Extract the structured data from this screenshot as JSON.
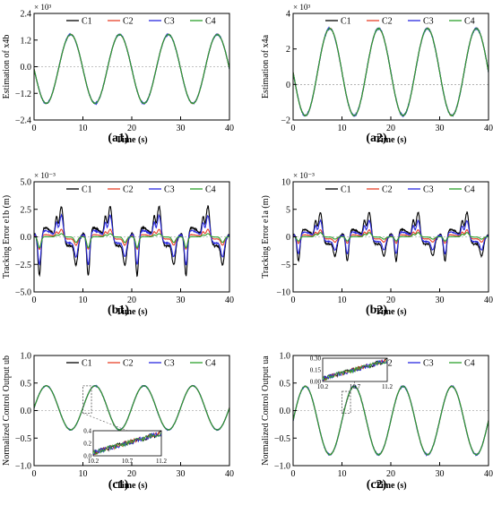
{
  "series_colors": {
    "C1": "#000000",
    "C2": "#e8412a",
    "C3": "#2a2ae0",
    "C4": "#2ca02c"
  },
  "panel_order": [
    "a1",
    "a2",
    "b1",
    "b2",
    "c1",
    "c2"
  ],
  "chart_data": [
    {
      "id": "a1",
      "type": "line",
      "caption": "(a1)",
      "ylabel": "Estimation of x4b",
      "xlabel": "Time (s)",
      "exponent": "× 10³",
      "xlim": [
        0,
        40
      ],
      "ylim": [
        -2.4,
        2.4
      ],
      "xticks": [
        0,
        10,
        20,
        30,
        40
      ],
      "yticks": [
        -2.4,
        -1.2,
        0.0,
        1.2,
        2.4
      ],
      "ytick_labels": [
        "−2.4",
        "−1.2",
        "0.0",
        "1.2",
        "2.4"
      ],
      "legend": [
        "C1",
        "C2",
        "C3",
        "C4"
      ],
      "legend_position": "top-right",
      "signal": {
        "kind": "sine",
        "amplitude": 1.55,
        "offset": -0.1,
        "period": 10,
        "phase_peak_time": 7.5
      },
      "samples": {
        "x": [
          0,
          2.5,
          5,
          7.5,
          10,
          12.5,
          15,
          17.5,
          20,
          22.5,
          25,
          27.5,
          30,
          32.5,
          35,
          37.5,
          40
        ],
        "y": [
          -0.1,
          -1.65,
          -0.1,
          1.45,
          -0.1,
          -1.65,
          -0.1,
          1.45,
          -0.1,
          -1.65,
          -0.1,
          1.45,
          -0.1,
          -1.65,
          -0.1,
          1.45,
          -0.1
        ]
      }
    },
    {
      "id": "a2",
      "type": "line",
      "caption": "(a2)",
      "ylabel": "Estimation of x4a",
      "xlabel": "Time (s)",
      "exponent": "× 10³",
      "xlim": [
        0,
        40
      ],
      "ylim": [
        -2,
        4
      ],
      "xticks": [
        0,
        10,
        20,
        30,
        40
      ],
      "yticks": [
        -2,
        0,
        2,
        4
      ],
      "ytick_labels": [
        "−2",
        "0",
        "2",
        "4"
      ],
      "legend": [
        "C1",
        "C2",
        "C3",
        "C4"
      ],
      "legend_position": "top-right",
      "signal": {
        "kind": "sine",
        "amplitude": 2.45,
        "offset": 0.7,
        "period": 10,
        "phase_peak_time": 7.5
      },
      "samples": {
        "x": [
          0,
          2.5,
          5,
          7.5,
          10,
          12.5,
          15,
          17.5,
          20,
          22.5,
          25,
          27.5,
          30,
          32.5,
          35,
          37.5,
          40
        ],
        "y": [
          0.7,
          -1.75,
          0.7,
          3.15,
          0.7,
          -1.75,
          0.7,
          3.15,
          0.7,
          -1.75,
          0.7,
          3.15,
          0.7,
          -1.75,
          0.7,
          3.15,
          0.7
        ]
      }
    },
    {
      "id": "b1",
      "type": "line",
      "caption": "(b1)",
      "ylabel": "Tracking Error e1b (m)",
      "xlabel": "Time (s)",
      "exponent": "× 10⁻³",
      "xlim": [
        0,
        40
      ],
      "ylim": [
        -5.0,
        5.0
      ],
      "xticks": [
        0,
        10,
        20,
        30,
        40
      ],
      "yticks": [
        -5.0,
        -2.5,
        0.0,
        2.5,
        5.0
      ],
      "ytick_labels": [
        "−5.0",
        "−2.5",
        "0.0",
        "2.5",
        "5.0"
      ],
      "legend": [
        "C1",
        "C2",
        "C3",
        "C4"
      ],
      "legend_position": "top-right",
      "error_peaks": {
        "C1": [
          3.3,
          -4.2
        ],
        "C2": [
          0.8,
          -1.3
        ],
        "C3": [
          2.3,
          -3.0
        ],
        "C4": [
          0.3,
          -1.0
        ]
      }
    },
    {
      "id": "b2",
      "type": "line",
      "caption": "(b2)",
      "ylabel": "Tracking Error e1a (m)",
      "xlabel": "Time (s)",
      "exponent": "× 10⁻³",
      "xlim": [
        0,
        40
      ],
      "ylim": [
        -10,
        10
      ],
      "xticks": [
        0,
        10,
        20,
        30,
        40
      ],
      "yticks": [
        -10,
        -5,
        0,
        5,
        10
      ],
      "ytick_labels": [
        "−10",
        "−5",
        "0",
        "5",
        "10"
      ],
      "legend": [
        "C1",
        "C2",
        "C3",
        "C4"
      ],
      "legend_position": "top-right",
      "error_peaks": {
        "C1": [
          5.3,
          -5.5
        ],
        "C2": [
          1.5,
          -1.5
        ],
        "C3": [
          3.5,
          -3.8
        ],
        "C4": [
          0.8,
          -0.8
        ]
      }
    },
    {
      "id": "c1",
      "type": "line",
      "caption": "(c1)",
      "ylabel": "Normalized Control Output ub",
      "xlabel": "Time (s)",
      "exponent": "",
      "xlim": [
        0,
        40
      ],
      "ylim": [
        -1.0,
        1.0
      ],
      "xticks": [
        0,
        10,
        20,
        30,
        40
      ],
      "yticks": [
        -1.0,
        -0.5,
        0.0,
        0.5,
        1.0
      ],
      "ytick_labels": [
        "−1.0",
        "−0.5",
        "0.0",
        "0.5",
        "1.0"
      ],
      "legend": [
        "C1",
        "C2",
        "C3",
        "C4"
      ],
      "legend_position": "top-right",
      "signal": {
        "kind": "sine",
        "amplitude": 0.4,
        "offset": 0.05,
        "period": 10,
        "phase_peak_time": 2.5
      },
      "inset": {
        "xlim": [
          10.2,
          11.2
        ],
        "ylim": [
          0.0,
          0.4
        ],
        "xticks": [
          10.2,
          10.7,
          11.2
        ],
        "yticks": [
          0.0,
          0.2,
          0.4
        ],
        "xtick_labels": [
          "10.2",
          "10.7",
          "11.2"
        ],
        "ytick_labels": [
          "0.0",
          "0.2",
          "0.4"
        ],
        "zoom_box": [
          10.2,
          11.2,
          0.0,
          0.4
        ]
      }
    },
    {
      "id": "c2",
      "type": "line",
      "caption": "(c2)",
      "ylabel": "Normalized Control Output ua",
      "xlabel": "Time (s)",
      "exponent": "",
      "xlim": [
        0,
        40
      ],
      "ylim": [
        -1.0,
        1.0
      ],
      "xticks": [
        0,
        10,
        20,
        30,
        40
      ],
      "yticks": [
        -1.0,
        -0.5,
        0.0,
        0.5,
        1.0
      ],
      "ytick_labels": [
        "−1.0",
        "−0.5",
        "0.0",
        "0.5",
        "1.0"
      ],
      "legend": [
        "C1",
        "C2",
        "C3",
        "C4"
      ],
      "legend_position": "top-right",
      "signal": {
        "kind": "sine",
        "amplitude": 0.62,
        "offset": -0.18,
        "period": 10,
        "phase_peak_time": 2.5
      },
      "inset": {
        "xlim": [
          10.2,
          11.2
        ],
        "ylim": [
          0.0,
          0.3
        ],
        "xticks": [
          10.2,
          10.7,
          11.2
        ],
        "yticks": [
          0.0,
          0.15,
          0.3
        ],
        "xtick_labels": [
          "10.2",
          "10.7",
          "11.2"
        ],
        "ytick_labels": [
          "0.00",
          "0.15",
          "0.30"
        ],
        "zoom_box": [
          10.2,
          11.2,
          0.0,
          0.3
        ]
      }
    }
  ]
}
